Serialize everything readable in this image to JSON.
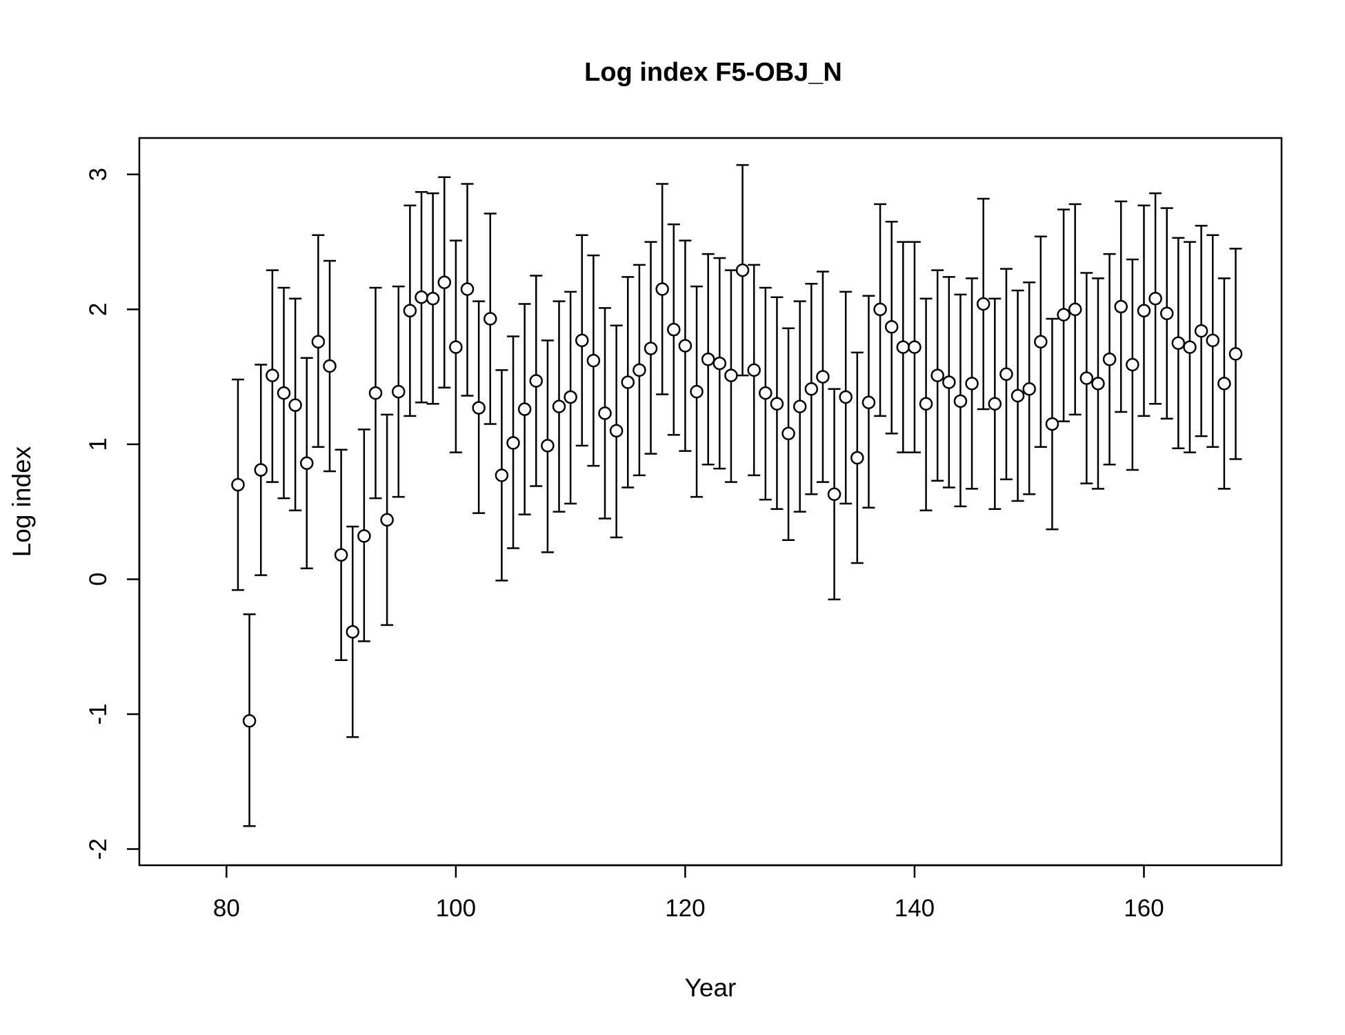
{
  "chart_data": {
    "type": "scatter",
    "title": "Log index F5-OBJ_N",
    "xlabel": "Year",
    "ylabel": "Log index",
    "xlim": [
      72.4,
      172
    ],
    "ylim": [
      -2.12,
      3.27
    ],
    "xticks": [
      80,
      100,
      120,
      140,
      160
    ],
    "yticks": [
      -2,
      -1,
      0,
      1,
      2,
      3
    ],
    "xtick_labels": [
      "80",
      "100",
      "120",
      "140",
      "160"
    ],
    "ytick_labels": [
      "-2",
      "-1",
      "0",
      "1",
      "2",
      "3"
    ],
    "grid": false,
    "error_bars": "point ± interval",
    "series": [
      {
        "points": [
          {
            "x": 81,
            "y": 0.7,
            "lo": -0.08,
            "hi": 1.48
          },
          {
            "x": 82,
            "y": -1.05,
            "lo": -1.83,
            "hi": -0.26
          },
          {
            "x": 83,
            "y": 0.81,
            "lo": 0.03,
            "hi": 1.59
          },
          {
            "x": 84,
            "y": 1.51,
            "lo": 0.72,
            "hi": 2.29
          },
          {
            "x": 85,
            "y": 1.38,
            "lo": 0.6,
            "hi": 2.16
          },
          {
            "x": 86,
            "y": 1.29,
            "lo": 0.51,
            "hi": 2.08
          },
          {
            "x": 87,
            "y": 0.86,
            "lo": 0.08,
            "hi": 1.64
          },
          {
            "x": 88,
            "y": 1.76,
            "lo": 0.98,
            "hi": 2.55
          },
          {
            "x": 89,
            "y": 1.58,
            "lo": 0.8,
            "hi": 2.36
          },
          {
            "x": 90,
            "y": 0.18,
            "lo": -0.6,
            "hi": 0.96
          },
          {
            "x": 91,
            "y": -0.39,
            "lo": -1.17,
            "hi": 0.39
          },
          {
            "x": 92,
            "y": 0.32,
            "lo": -0.46,
            "hi": 1.11
          },
          {
            "x": 93,
            "y": 1.38,
            "lo": 0.6,
            "hi": 2.16
          },
          {
            "x": 94,
            "y": 0.44,
            "lo": -0.34,
            "hi": 1.22
          },
          {
            "x": 95,
            "y": 1.39,
            "lo": 0.61,
            "hi": 2.17
          },
          {
            "x": 96,
            "y": 1.99,
            "lo": 1.21,
            "hi": 2.77
          },
          {
            "x": 97,
            "y": 2.09,
            "lo": 1.31,
            "hi": 2.87
          },
          {
            "x": 98,
            "y": 2.08,
            "lo": 1.3,
            "hi": 2.86
          },
          {
            "x": 99,
            "y": 2.2,
            "lo": 1.42,
            "hi": 2.98
          },
          {
            "x": 100,
            "y": 1.72,
            "lo": 0.94,
            "hi": 2.51
          },
          {
            "x": 101,
            "y": 2.15,
            "lo": 1.36,
            "hi": 2.93
          },
          {
            "x": 102,
            "y": 1.27,
            "lo": 0.49,
            "hi": 2.06
          },
          {
            "x": 103,
            "y": 1.93,
            "lo": 1.15,
            "hi": 2.71
          },
          {
            "x": 104,
            "y": 0.77,
            "lo": -0.01,
            "hi": 1.55
          },
          {
            "x": 105,
            "y": 1.01,
            "lo": 0.23,
            "hi": 1.8
          },
          {
            "x": 106,
            "y": 1.26,
            "lo": 0.48,
            "hi": 2.04
          },
          {
            "x": 107,
            "y": 1.47,
            "lo": 0.69,
            "hi": 2.25
          },
          {
            "x": 108,
            "y": 0.99,
            "lo": 0.2,
            "hi": 1.77
          },
          {
            "x": 109,
            "y": 1.28,
            "lo": 0.5,
            "hi": 2.06
          },
          {
            "x": 110,
            "y": 1.35,
            "lo": 0.56,
            "hi": 2.13
          },
          {
            "x": 111,
            "y": 1.77,
            "lo": 0.99,
            "hi": 2.55
          },
          {
            "x": 112,
            "y": 1.62,
            "lo": 0.84,
            "hi": 2.4
          },
          {
            "x": 113,
            "y": 1.23,
            "lo": 0.45,
            "hi": 2.01
          },
          {
            "x": 114,
            "y": 1.1,
            "lo": 0.31,
            "hi": 1.88
          },
          {
            "x": 115,
            "y": 1.46,
            "lo": 0.68,
            "hi": 2.24
          },
          {
            "x": 116,
            "y": 1.55,
            "lo": 0.77,
            "hi": 2.33
          },
          {
            "x": 117,
            "y": 1.71,
            "lo": 0.93,
            "hi": 2.5
          },
          {
            "x": 118,
            "y": 2.15,
            "lo": 1.37,
            "hi": 2.93
          },
          {
            "x": 119,
            "y": 1.85,
            "lo": 1.07,
            "hi": 2.63
          },
          {
            "x": 120,
            "y": 1.73,
            "lo": 0.95,
            "hi": 2.51
          },
          {
            "x": 121,
            "y": 1.39,
            "lo": 0.61,
            "hi": 2.17
          },
          {
            "x": 122,
            "y": 1.63,
            "lo": 0.85,
            "hi": 2.41
          },
          {
            "x": 123,
            "y": 1.6,
            "lo": 0.82,
            "hi": 2.38
          },
          {
            "x": 124,
            "y": 1.51,
            "lo": 0.72,
            "hi": 2.29
          },
          {
            "x": 125,
            "y": 2.29,
            "lo": 1.51,
            "hi": 3.07
          },
          {
            "x": 126,
            "y": 1.55,
            "lo": 0.77,
            "hi": 2.33
          },
          {
            "x": 127,
            "y": 1.38,
            "lo": 0.59,
            "hi": 2.16
          },
          {
            "x": 128,
            "y": 1.3,
            "lo": 0.52,
            "hi": 2.09
          },
          {
            "x": 129,
            "y": 1.08,
            "lo": 0.29,
            "hi": 1.86
          },
          {
            "x": 130,
            "y": 1.28,
            "lo": 0.5,
            "hi": 2.06
          },
          {
            "x": 131,
            "y": 1.41,
            "lo": 0.63,
            "hi": 2.19
          },
          {
            "x": 132,
            "y": 1.5,
            "lo": 0.72,
            "hi": 2.28
          },
          {
            "x": 133,
            "y": 0.63,
            "lo": -0.15,
            "hi": 1.41
          },
          {
            "x": 134,
            "y": 1.35,
            "lo": 0.56,
            "hi": 2.13
          },
          {
            "x": 135,
            "y": 0.9,
            "lo": 0.12,
            "hi": 1.68
          },
          {
            "x": 136,
            "y": 1.31,
            "lo": 0.53,
            "hi": 2.1
          },
          {
            "x": 137,
            "y": 2.0,
            "lo": 1.21,
            "hi": 2.78
          },
          {
            "x": 138,
            "y": 1.87,
            "lo": 1.08,
            "hi": 2.65
          },
          {
            "x": 139,
            "y": 1.72,
            "lo": 0.94,
            "hi": 2.5
          },
          {
            "x": 140,
            "y": 1.72,
            "lo": 0.94,
            "hi": 2.5
          },
          {
            "x": 141,
            "y": 1.3,
            "lo": 0.51,
            "hi": 2.08
          },
          {
            "x": 142,
            "y": 1.51,
            "lo": 0.73,
            "hi": 2.29
          },
          {
            "x": 143,
            "y": 1.46,
            "lo": 0.68,
            "hi": 2.24
          },
          {
            "x": 144,
            "y": 1.32,
            "lo": 0.54,
            "hi": 2.11
          },
          {
            "x": 145,
            "y": 1.45,
            "lo": 0.67,
            "hi": 2.23
          },
          {
            "x": 146,
            "y": 2.04,
            "lo": 1.26,
            "hi": 2.82
          },
          {
            "x": 147,
            "y": 1.3,
            "lo": 0.52,
            "hi": 2.08
          },
          {
            "x": 148,
            "y": 1.52,
            "lo": 0.74,
            "hi": 2.3
          },
          {
            "x": 149,
            "y": 1.36,
            "lo": 0.58,
            "hi": 2.14
          },
          {
            "x": 150,
            "y": 1.41,
            "lo": 0.63,
            "hi": 2.2
          },
          {
            "x": 151,
            "y": 1.76,
            "lo": 0.98,
            "hi": 2.54
          },
          {
            "x": 152,
            "y": 1.15,
            "lo": 0.37,
            "hi": 1.93
          },
          {
            "x": 153,
            "y": 1.96,
            "lo": 1.17,
            "hi": 2.74
          },
          {
            "x": 154,
            "y": 2.0,
            "lo": 1.22,
            "hi": 2.78
          },
          {
            "x": 155,
            "y": 1.49,
            "lo": 0.71,
            "hi": 2.27
          },
          {
            "x": 156,
            "y": 1.45,
            "lo": 0.67,
            "hi": 2.23
          },
          {
            "x": 157,
            "y": 1.63,
            "lo": 0.85,
            "hi": 2.41
          },
          {
            "x": 158,
            "y": 2.02,
            "lo": 1.24,
            "hi": 2.8
          },
          {
            "x": 159,
            "y": 1.59,
            "lo": 0.81,
            "hi": 2.37
          },
          {
            "x": 160,
            "y": 1.99,
            "lo": 1.21,
            "hi": 2.77
          },
          {
            "x": 161,
            "y": 2.08,
            "lo": 1.3,
            "hi": 2.86
          },
          {
            "x": 162,
            "y": 1.97,
            "lo": 1.19,
            "hi": 2.75
          },
          {
            "x": 163,
            "y": 1.75,
            "lo": 0.97,
            "hi": 2.53
          },
          {
            "x": 164,
            "y": 1.72,
            "lo": 0.94,
            "hi": 2.5
          },
          {
            "x": 165,
            "y": 1.84,
            "lo": 1.06,
            "hi": 2.62
          },
          {
            "x": 166,
            "y": 1.77,
            "lo": 0.98,
            "hi": 2.55
          },
          {
            "x": 167,
            "y": 1.45,
            "lo": 0.67,
            "hi": 2.23
          },
          {
            "x": 168,
            "y": 1.67,
            "lo": 0.89,
            "hi": 2.45
          }
        ]
      }
    ]
  }
}
